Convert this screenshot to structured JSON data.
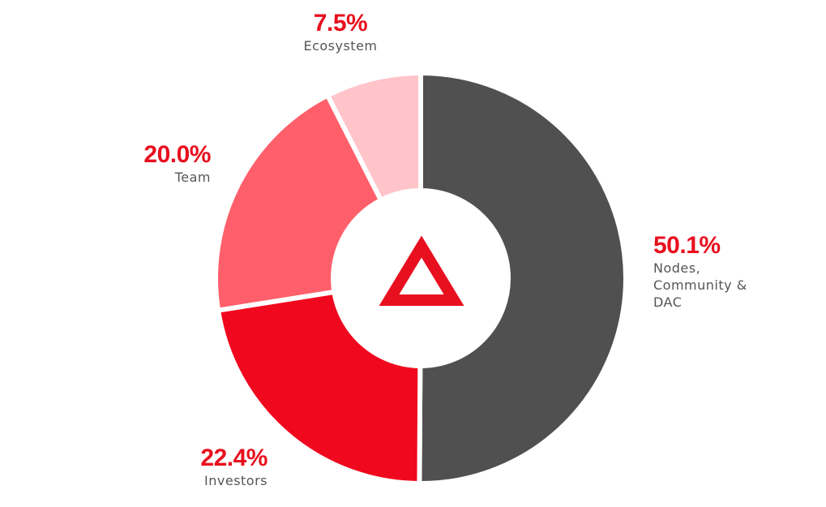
{
  "chart_data": {
    "type": "donut",
    "categories": [
      "Nodes, Community & DAC",
      "Investors",
      "Team",
      "Ecosystem"
    ],
    "values": [
      50.1,
      22.4,
      20.0,
      7.5
    ],
    "value_labels": [
      "50.1%",
      "22.4%",
      "20.0%",
      "7.5%"
    ],
    "colors": [
      "#505050",
      "#f0081e",
      "#ff5f6b",
      "#ffc4c9"
    ]
  }
}
